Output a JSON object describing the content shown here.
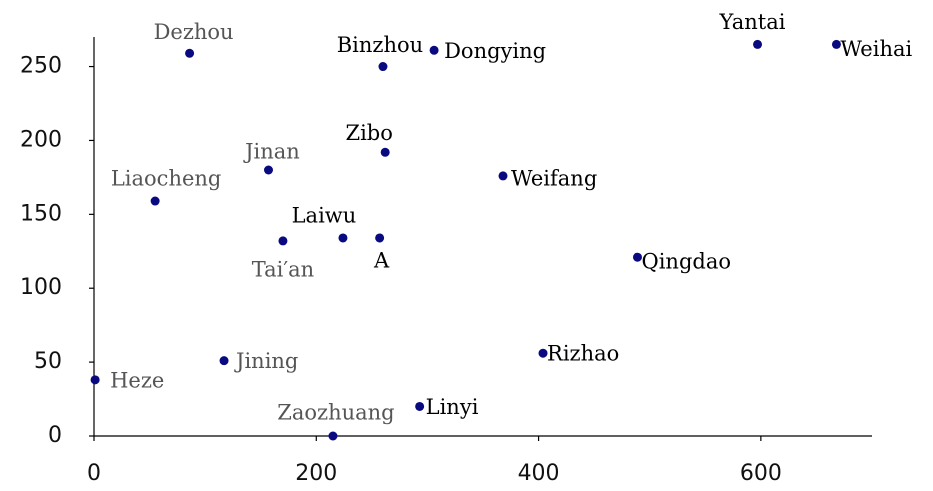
{
  "chart_data": {
    "type": "scatter",
    "point_labels": [
      "Dezhou",
      "Binzhou",
      "Dongying",
      "Yantai",
      "Weihai",
      "Zibo",
      "Jinan",
      "Weifang",
      "Liaocheng",
      "Laiwu",
      "A",
      "Tai′an",
      "Qingdao",
      "Rizhao",
      "Jining",
      "Heze",
      "Linyi",
      "Zaozhuang"
    ],
    "x": [
      86,
      260,
      306,
      597,
      668,
      262,
      157,
      368,
      55,
      224,
      257,
      170,
      489,
      404,
      117,
      1,
      293,
      215
    ],
    "values": [
      259,
      250,
      261,
      265,
      265,
      192,
      180,
      176,
      159,
      134,
      134,
      132,
      121,
      56,
      51,
      38,
      20,
      0
    ],
    "color": "#0a0a80",
    "label_colors": [
      "#555",
      "#000",
      "#000",
      "#000",
      "#000",
      "#000",
      "#555",
      "#000",
      "#555",
      "#000",
      "#000",
      "#555",
      "#000",
      "#000",
      "#555",
      "#555",
      "#000",
      "#555"
    ],
    "xlim": [
      0,
      700
    ],
    "xticks": [
      0,
      200,
      400,
      600
    ],
    "ylim": [
      0,
      270
    ],
    "yticks": [
      0,
      50,
      100,
      150,
      200,
      250
    ]
  }
}
